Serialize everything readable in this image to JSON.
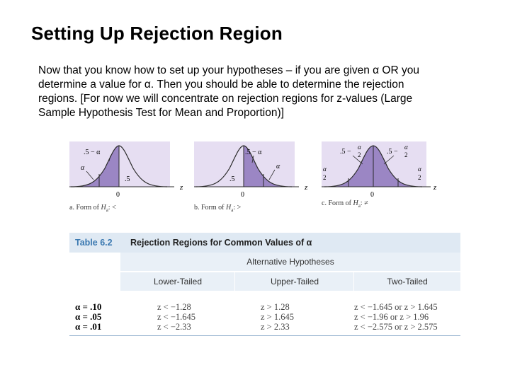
{
  "title": "Setting Up Rejection Region",
  "paragraph_lines": [
    "Now that you know how to set up your hypotheses – if you are given α OR you",
    "determine a value for α.  Then you should be able to determine the rejection",
    "regions.  [For now we will concentrate on rejection regions for z-values (Large",
    "Sample Hypothesis Test for Mean and Proportion)]"
  ],
  "figures": {
    "lower": {
      "top_label": ".5 − α",
      "alpha_label": "α",
      "half_label": ".5",
      "zero": "0",
      "z": "z",
      "caption_prefix": "a. Form of ",
      "caption_h": "H",
      "caption_sub": "a",
      "caption_suffix": ": <"
    },
    "upper": {
      "top_label": ".5 − α",
      "alpha_label": "α",
      "half_label": ".5",
      "zero": "0",
      "z": "z",
      "caption_prefix": "b. Form of ",
      "caption_h": "H",
      "caption_sub": "a",
      "caption_suffix": ": >"
    },
    "two": {
      "top_left_label": ".5 −",
      "top_right_label": ".5 −",
      "frac_num": "α",
      "frac_den": "2",
      "zero": "0",
      "z": "z",
      "caption_prefix": "c. Form of ",
      "caption_h": "H",
      "caption_sub": "a",
      "caption_suffix": ": ≠"
    }
  },
  "table": {
    "number": "Table 6.2",
    "title": "Rejection Regions for Common Values of α",
    "group_header": "Alternative Hypotheses",
    "columns": [
      "Lower-Tailed",
      "Upper-Tailed",
      "Two-Tailed"
    ],
    "alphas": [
      "α = .10",
      "α = .05",
      "α = .01"
    ],
    "lower": [
      "z < −1.28",
      "z < −1.645",
      "z < −2.33"
    ],
    "upper": [
      "z > 1.28",
      "z > 1.645",
      "z > 2.33"
    ],
    "two": [
      "z < −1.645 or z > 1.645",
      "z < −1.96 or z > 1.96",
      "z < −2.575 or z > 2.575"
    ]
  },
  "colors": {
    "shade_dark": "#9b86c4",
    "shade_light": "#e6def2",
    "curve": "#2a2a2a",
    "table_accent": "#3a78b0",
    "table_band": "#dfe9f3"
  }
}
